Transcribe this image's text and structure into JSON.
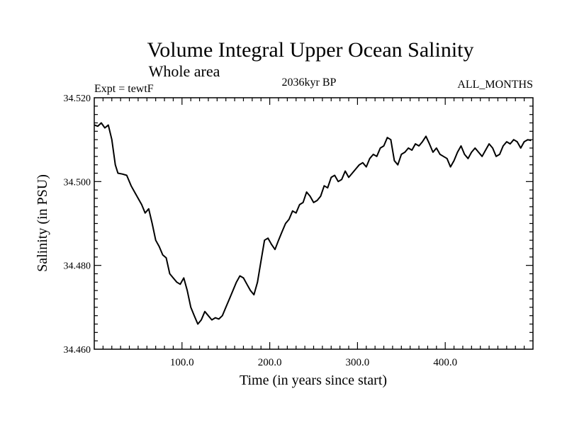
{
  "chart_data": {
    "type": "line",
    "title": "Volume Integral Upper Ocean Salinity",
    "subtitle": "Whole area",
    "experiment_label": "Expt = tewtF",
    "period_label": "2036kyr BP",
    "months_label": "ALL_MONTHS",
    "xlabel": "Time (in years since start)",
    "ylabel": "Salinity (in PSU)",
    "xlim": [
      0,
      500
    ],
    "ylim": [
      34.46,
      34.52
    ],
    "x_ticks": [
      {
        "value": 100,
        "label": "100.0"
      },
      {
        "value": 200,
        "label": "200.0"
      },
      {
        "value": 300,
        "label": "300.0"
      },
      {
        "value": 400,
        "label": "400.0"
      }
    ],
    "y_ticks": [
      {
        "value": 34.46,
        "label": "34.460"
      },
      {
        "value": 34.48,
        "label": "34.480"
      },
      {
        "value": 34.5,
        "label": "34.500"
      },
      {
        "value": 34.52,
        "label": "34.520"
      }
    ],
    "series": [
      {
        "name": "Salinity",
        "color": "#000000",
        "x": [
          0,
          4,
          8,
          12,
          16,
          20,
          24,
          27,
          32,
          37,
          42,
          46,
          50,
          54,
          58,
          62,
          66,
          70,
          74,
          78,
          82,
          86,
          90,
          94,
          98,
          102,
          106,
          110,
          114,
          118,
          122,
          126,
          130,
          134,
          138,
          142,
          146,
          150,
          154,
          158,
          162,
          166,
          170,
          174,
          178,
          182,
          186,
          190,
          194,
          198,
          202,
          206,
          210,
          214,
          218,
          222,
          226,
          230,
          234,
          238,
          242,
          246,
          250,
          254,
          258,
          262,
          266,
          270,
          274,
          278,
          282,
          286,
          290,
          294,
          298,
          302,
          306,
          310,
          314,
          318,
          322,
          326,
          330,
          334,
          338,
          342,
          346,
          350,
          354,
          358,
          362,
          366,
          370,
          374,
          378,
          382,
          386,
          390,
          394,
          398,
          402,
          406,
          410,
          414,
          418,
          422,
          426,
          430,
          434,
          438,
          442,
          446,
          450,
          454,
          458,
          462,
          466,
          470,
          474,
          478,
          482,
          486,
          490,
          494,
          498
        ],
        "values": [
          34.5135,
          34.5132,
          34.514,
          34.5128,
          34.5135,
          34.51,
          34.504,
          34.502,
          34.5018,
          34.5015,
          34.499,
          34.4975,
          34.496,
          34.4945,
          34.4925,
          34.4935,
          34.49,
          34.486,
          34.4845,
          34.4825,
          34.4818,
          34.478,
          34.477,
          34.476,
          34.4755,
          34.477,
          34.474,
          34.47,
          34.468,
          34.466,
          34.467,
          34.469,
          34.468,
          34.467,
          34.4675,
          34.4672,
          34.468,
          34.47,
          34.472,
          34.474,
          34.476,
          34.4775,
          34.477,
          34.4755,
          34.474,
          34.473,
          34.476,
          34.481,
          34.486,
          34.4865,
          34.485,
          34.4838,
          34.486,
          34.488,
          34.49,
          34.491,
          34.493,
          34.4925,
          34.4945,
          34.495,
          34.4975,
          34.4965,
          34.495,
          34.4955,
          34.4965,
          34.499,
          34.4985,
          34.501,
          34.5015,
          34.5,
          34.5005,
          34.5025,
          34.501,
          34.502,
          34.503,
          34.504,
          34.5045,
          34.5035,
          34.5055,
          34.5065,
          34.506,
          34.508,
          34.5085,
          34.5105,
          34.51,
          34.505,
          34.504,
          34.5065,
          34.507,
          34.508,
          34.5075,
          34.509,
          34.5085,
          34.5095,
          34.5108,
          34.509,
          34.507,
          34.508,
          34.5065,
          34.506,
          34.5055,
          34.5035,
          34.505,
          34.507,
          34.5085,
          34.5065,
          34.5055,
          34.507,
          34.508,
          34.507,
          34.506,
          34.5075,
          34.509,
          34.508,
          34.506,
          34.5065,
          34.5085,
          34.5095,
          34.509,
          34.51,
          34.5095,
          34.508,
          34.5095,
          34.51,
          34.5098
        ]
      }
    ]
  }
}
